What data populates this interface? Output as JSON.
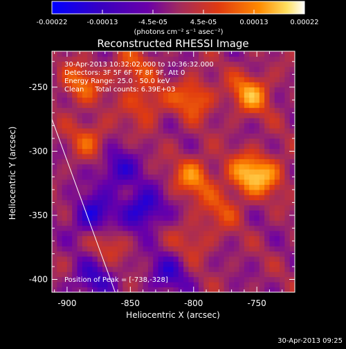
{
  "colorbar": {
    "tick_labels": [
      "-0.00022",
      "-0.00013",
      "-4.5e-05",
      "4.5e-05",
      "0.00013",
      "0.00022"
    ],
    "unit_label": "(photons cm⁻² s⁻¹ asec⁻²)"
  },
  "image_annotations": {
    "time_range": "30-Apr-2013 10:32:02.000 to 10:36:32.000",
    "detectors": "Detectors: 3F 5F 6F 7F 8F 9F, Att 0",
    "energy_range": "Energy Range: 25.0 - 50.0 keV",
    "method_counts": "Clean     Total counts: 6.39E+03",
    "peak_position": "Position of Peak = [-738,-328]"
  },
  "footer": {
    "timestamp": "30-Apr-2013 09:25"
  },
  "colors": {
    "background": "#000000",
    "foreground": "#ffffff"
  },
  "chart_data": {
    "type": "heatmap",
    "title": "Reconstructed RHESSI Image",
    "xlabel": "Heliocentric X (arcsec)",
    "ylabel": "Heliocentric Y (arcsec)",
    "xlim": [
      -912,
      -720
    ],
    "ylim": [
      -410,
      -222
    ],
    "x_ticks": [
      -900,
      -850,
      -800,
      -750
    ],
    "y_ticks": [
      -250,
      -300,
      -350,
      -400
    ],
    "colormap": [
      "#0000ff",
      "#3a00c0",
      "#6a00a8",
      "#a02a60",
      "#e03a10",
      "#ff8a00",
      "#ffe060",
      "#ffffff"
    ],
    "value_range": [
      -0.00022,
      0.00022
    ],
    "grid": false,
    "limb_line": [
      [
        -912,
        -275
      ],
      [
        -862,
        -410
      ]
    ],
    "bright_regions": [
      {
        "x": -755,
        "y": -255,
        "value": 0.00014
      },
      {
        "x": -800,
        "y": -258,
        "value": 0.00011
      },
      {
        "x": -838,
        "y": -262,
        "value": 9e-05
      },
      {
        "x": -890,
        "y": -248,
        "value": 0.0001
      },
      {
        "x": -882,
        "y": -290,
        "value": 8e-05
      },
      {
        "x": -758,
        "y": -318,
        "value": 0.00013
      },
      {
        "x": -800,
        "y": -320,
        "value": 0.00012
      },
      {
        "x": -742,
        "y": -318,
        "value": 0.0001
      },
      {
        "x": -778,
        "y": -345,
        "value": 7e-05
      },
      {
        "x": -870,
        "y": -372,
        "value": 6e-05
      },
      {
        "x": -800,
        "y": -370,
        "value": 6e-05
      },
      {
        "x": -850,
        "y": -235,
        "value": 8e-05
      }
    ],
    "dim_regions": [
      {
        "x": -840,
        "y": -345,
        "value": -0.00016
      },
      {
        "x": -860,
        "y": -315,
        "value": -0.00012
      },
      {
        "x": -880,
        "y": -350,
        "value": -0.00014
      },
      {
        "x": -820,
        "y": -395,
        "value": -0.0001
      },
      {
        "x": -880,
        "y": -400,
        "value": -0.00011
      }
    ]
  }
}
